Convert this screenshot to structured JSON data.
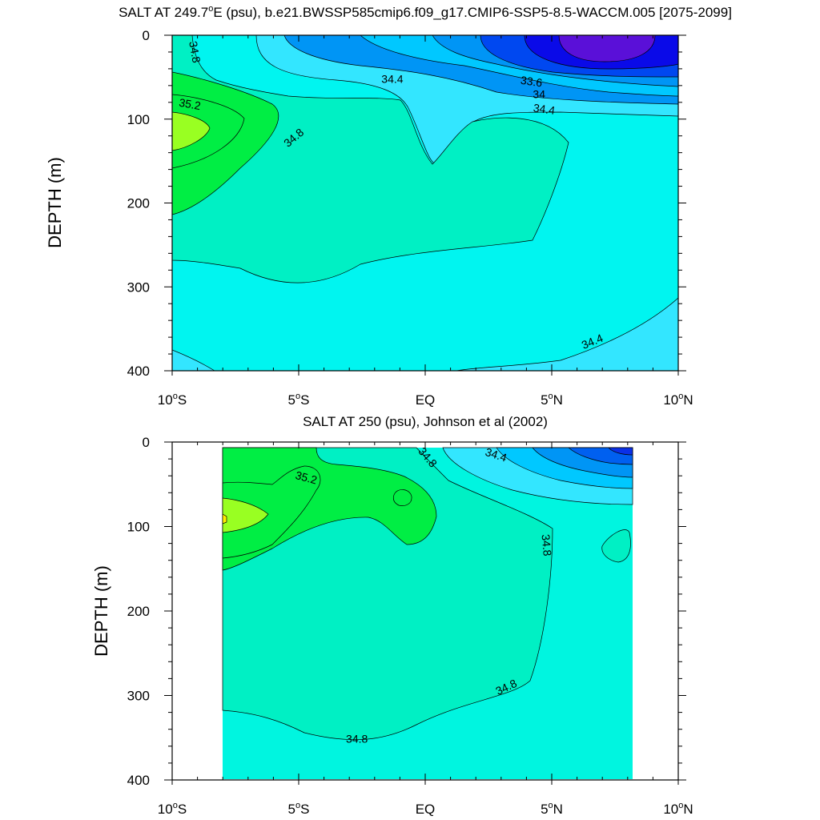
{
  "chart_data": [
    {
      "type": "contour",
      "title": "SALT AT 249.7°E (psu), b.e21.BWSSP585cmip6.f09_g17.CMIP6-SSP5-8.5-WACCM.005 [2075-2099]",
      "title_parts": {
        "pre": "SALT AT 249.7",
        "sup": "o",
        "post": "E (psu), b.e21.BWSSP585cmip6.f09_g17.CMIP6-SSP5-8.5-WACCM.005 [2075-2099]"
      },
      "ylabel": "DEPTH (m)",
      "xlim": [
        -10,
        10
      ],
      "ylim": [
        400,
        0
      ],
      "x_ticks": [
        {
          "value": -10,
          "num": "10",
          "sup": "o",
          "hem": "S"
        },
        {
          "value": -5,
          "num": "5",
          "sup": "o",
          "hem": "S"
        },
        {
          "value": 0,
          "num": "EQ",
          "sup": "",
          "hem": ""
        },
        {
          "value": 5,
          "num": "5",
          "sup": "o",
          "hem": "N"
        },
        {
          "value": 10,
          "num": "10",
          "sup": "o",
          "hem": "N"
        }
      ],
      "y_ticks": [
        "0",
        "100",
        "200",
        "300",
        "400"
      ],
      "contour_labels": [
        {
          "text": "34.8",
          "x": -9.1,
          "y": 20,
          "angle": 80
        },
        {
          "text": "35.2",
          "x": -9.3,
          "y": 82,
          "angle": 10
        },
        {
          "text": "34.8",
          "x": -5.2,
          "y": 122,
          "angle": -40
        },
        {
          "text": "34.4",
          "x": -1.3,
          "y": 52,
          "angle": 0
        },
        {
          "text": "33.6",
          "x": 4.2,
          "y": 55,
          "angle": 8
        },
        {
          "text": "34",
          "x": 4.5,
          "y": 70,
          "angle": 0
        },
        {
          "text": "34.4",
          "x": 4.7,
          "y": 88,
          "angle": 8
        },
        {
          "text": "34.4",
          "x": 6.6,
          "y": 365,
          "angle": -22
        }
      ]
    },
    {
      "type": "contour",
      "title": "SALT AT 250 (psu), Johnson et al (2002)",
      "ylabel": "DEPTH (m)",
      "xlim": [
        -10,
        10
      ],
      "ylim": [
        400,
        0
      ],
      "data_extent_x": [
        -8,
        8.2
      ],
      "x_ticks": [
        {
          "value": -10,
          "num": "10",
          "sup": "o",
          "hem": "S"
        },
        {
          "value": -5,
          "num": "5",
          "sup": "o",
          "hem": "S"
        },
        {
          "value": 0,
          "num": "EQ",
          "sup": "",
          "hem": ""
        },
        {
          "value": 5,
          "num": "5",
          "sup": "o",
          "hem": "N"
        },
        {
          "value": 10,
          "num": "10",
          "sup": "o",
          "hem": "N"
        }
      ],
      "y_ticks": [
        "0",
        "100",
        "200",
        "300",
        "400"
      ],
      "contour_labels": [
        {
          "text": "34.8",
          "x": 0.1,
          "y": 18,
          "angle": 50
        },
        {
          "text": "34.4",
          "x": 2.8,
          "y": 15,
          "angle": 18
        },
        {
          "text": "35.2",
          "x": -4.7,
          "y": 42,
          "angle": 15
        },
        {
          "text": "34.8",
          "x": 4.8,
          "y": 122,
          "angle": 85
        },
        {
          "text": "34.8",
          "x": 3.2,
          "y": 290,
          "angle": -25
        },
        {
          "text": "34.8",
          "x": -2.7,
          "y": 351,
          "angle": 0
        }
      ]
    }
  ],
  "colors": {
    "s33_6": "#5a10d8",
    "s33_8": "#0a0ae8",
    "s34_0": "#0048f0",
    "s34_2": "#0095f5",
    "s34_4": "#00c8ff",
    "s34_6": "#33e6ff",
    "s34_8": "#00f5f0",
    "s35_0": "#00f0c4",
    "s35_2": "#00ee44",
    "s35_4": "#99ff22",
    "s35_6": "#ffee00"
  }
}
